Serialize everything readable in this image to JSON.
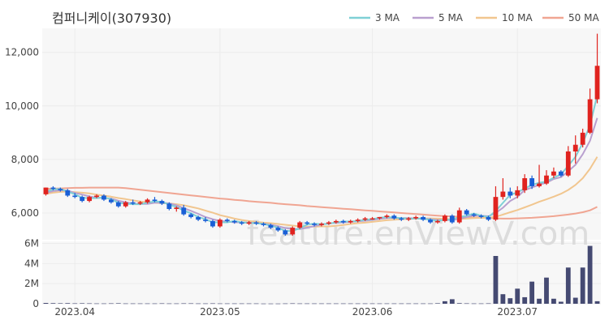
{
  "title": "컴퍼니케이(307930)",
  "watermark": "feature.enViewV.com",
  "colors": {
    "up": "#e0231f",
    "down": "#1a5fd6",
    "volume": "#454a72",
    "ma3": "#7fd0d6",
    "ma5": "#b9a0cf",
    "ma10": "#f1c68f",
    "ma50": "#f0a592",
    "grid": "#ececec",
    "panel_bg": "#f7f7f7"
  },
  "chart_data": {
    "type": "candlestick",
    "legend": [
      "3 MA",
      "5 MA",
      "10 MA",
      "50 MA"
    ],
    "legend_position": "top-right",
    "price_ticks": [
      "6,000",
      "8,000",
      "10,000",
      "12,000"
    ],
    "price_tick_values": [
      6000,
      8000,
      10000,
      12000
    ],
    "price_ylim": [
      5000,
      12900
    ],
    "volume_ticks": [
      "0",
      "2M",
      "4M",
      "6M"
    ],
    "volume_tick_values": [
      0,
      2000000,
      4000000,
      6000000
    ],
    "volume_ylim": [
      0,
      6200000
    ],
    "x_labels": [
      "2023.04",
      "2023.05",
      "2023.06",
      "2023.07"
    ],
    "x_label_index": [
      4,
      24,
      45,
      65
    ],
    "candles": [
      [
        6700,
        6950,
        6650,
        6950
      ],
      [
        6950,
        7000,
        6850,
        6900
      ],
      [
        6900,
        6950,
        6800,
        6850
      ],
      [
        6850,
        6900,
        6600,
        6650
      ],
      [
        6650,
        6750,
        6550,
        6600
      ],
      [
        6600,
        6650,
        6400,
        6450
      ],
      [
        6450,
        6650,
        6400,
        6600
      ],
      [
        6600,
        6700,
        6550,
        6650
      ],
      [
        6650,
        6700,
        6450,
        6500
      ],
      [
        6500,
        6550,
        6350,
        6400
      ],
      [
        6400,
        6450,
        6200,
        6250
      ],
      [
        6250,
        6450,
        6200,
        6400
      ],
      [
        6400,
        6500,
        6300,
        6350
      ],
      [
        6350,
        6450,
        6300,
        6400
      ],
      [
        6400,
        6550,
        6350,
        6500
      ],
      [
        6500,
        6600,
        6400,
        6450
      ],
      [
        6450,
        6500,
        6300,
        6350
      ],
      [
        6350,
        6400,
        6100,
        6150
      ],
      [
        6150,
        6250,
        6050,
        6200
      ],
      [
        6200,
        6300,
        5900,
        5950
      ],
      [
        5950,
        6000,
        5800,
        5850
      ],
      [
        5850,
        5900,
        5700,
        5750
      ],
      [
        5750,
        5850,
        5650,
        5700
      ],
      [
        5700,
        5750,
        5450,
        5500
      ],
      [
        5500,
        5800,
        5450,
        5750
      ],
      [
        5750,
        5800,
        5650,
        5700
      ],
      [
        5700,
        5750,
        5600,
        5650
      ],
      [
        5650,
        5700,
        5550,
        5600
      ],
      [
        5600,
        5700,
        5550,
        5650
      ],
      [
        5650,
        5700,
        5550,
        5600
      ],
      [
        5600,
        5650,
        5500,
        5550
      ],
      [
        5550,
        5600,
        5400,
        5450
      ],
      [
        5450,
        5500,
        5300,
        5350
      ],
      [
        5350,
        5400,
        5150,
        5200
      ],
      [
        5200,
        5500,
        5150,
        5450
      ],
      [
        5450,
        5700,
        5400,
        5650
      ],
      [
        5650,
        5700,
        5550,
        5600
      ],
      [
        5600,
        5650,
        5500,
        5550
      ],
      [
        5550,
        5650,
        5500,
        5600
      ],
      [
        5600,
        5700,
        5550,
        5650
      ],
      [
        5650,
        5750,
        5600,
        5700
      ],
      [
        5700,
        5750,
        5600,
        5650
      ],
      [
        5650,
        5750,
        5600,
        5700
      ],
      [
        5700,
        5800,
        5650,
        5750
      ],
      [
        5750,
        5850,
        5700,
        5800
      ],
      [
        5800,
        5850,
        5750,
        5800
      ],
      [
        5800,
        5850,
        5750,
        5850
      ],
      [
        5850,
        5950,
        5800,
        5900
      ],
      [
        5900,
        5950,
        5750,
        5800
      ],
      [
        5800,
        5850,
        5700,
        5750
      ],
      [
        5750,
        5850,
        5700,
        5800
      ],
      [
        5800,
        5900,
        5750,
        5850
      ],
      [
        5850,
        5900,
        5700,
        5750
      ],
      [
        5750,
        5800,
        5600,
        5650
      ],
      [
        5650,
        5750,
        5600,
        5700
      ],
      [
        5700,
        5950,
        5650,
        5900
      ],
      [
        5900,
        5950,
        5600,
        5650
      ],
      [
        5650,
        6200,
        5600,
        6100
      ],
      [
        6100,
        6150,
        5900,
        5950
      ],
      [
        5950,
        6000,
        5850,
        5900
      ],
      [
        5900,
        5950,
        5800,
        5850
      ],
      [
        5850,
        5900,
        5700,
        5750
      ],
      [
        5750,
        7000,
        5700,
        6600
      ],
      [
        6600,
        7300,
        6500,
        6800
      ],
      [
        6800,
        6950,
        6550,
        6650
      ],
      [
        6650,
        7000,
        6550,
        6850
      ],
      [
        6850,
        7450,
        6750,
        7300
      ],
      [
        7300,
        7400,
        6900,
        7000
      ],
      [
        7000,
        7800,
        6950,
        7100
      ],
      [
        7100,
        7600,
        7050,
        7400
      ],
      [
        7400,
        7700,
        7300,
        7550
      ],
      [
        7550,
        7600,
        7350,
        7400
      ],
      [
        7400,
        8500,
        7350,
        8300
      ],
      [
        8300,
        8900,
        7850,
        8550
      ],
      [
        8550,
        9150,
        8450,
        9000
      ],
      [
        9000,
        10650,
        8950,
        10250
      ],
      [
        10250,
        12700,
        10100,
        11500
      ]
    ],
    "volume": [
      80000,
      60000,
      50000,
      60000,
      40000,
      50000,
      40000,
      30000,
      30000,
      40000,
      50000,
      30000,
      30000,
      30000,
      30000,
      30000,
      40000,
      30000,
      30000,
      40000,
      40000,
      30000,
      30000,
      40000,
      30000,
      30000,
      30000,
      30000,
      30000,
      30000,
      20000,
      20000,
      20000,
      30000,
      40000,
      30000,
      30000,
      30000,
      30000,
      30000,
      30000,
      30000,
      30000,
      30000,
      30000,
      30000,
      30000,
      30000,
      30000,
      30000,
      30000,
      30000,
      30000,
      30000,
      50000,
      250000,
      450000,
      60000,
      40000,
      30000,
      30000,
      40000,
      4750000,
      950000,
      550000,
      1500000,
      650000,
      2200000,
      500000,
      2600000,
      500000,
      200000,
      3600000,
      600000,
      3600000,
      5750000,
      250000
    ],
    "ma3": [
      6800,
      6880,
      6900,
      6800,
      6700,
      6570,
      6550,
      6560,
      6580,
      6520,
      6380,
      6350,
      6330,
      6330,
      6390,
      6430,
      6420,
      6310,
      6230,
      6090,
      5990,
      5850,
      5770,
      5650,
      5650,
      5650,
      5700,
      5650,
      5630,
      5620,
      5590,
      5530,
      5450,
      5330,
      5330,
      5430,
      5570,
      5600,
      5580,
      5600,
      5650,
      5680,
      5680,
      5700,
      5750,
      5770,
      5820,
      5850,
      5830,
      5810,
      5780,
      5800,
      5780,
      5750,
      5700,
      5750,
      5750,
      5850,
      5900,
      5980,
      5900,
      5850,
      6070,
      6380,
      6680,
      6770,
      6920,
      7050,
      7130,
      7170,
      7320,
      7450,
      7760,
      8100,
      8620,
      9270,
      10400
    ],
    "ma5": [
      6750,
      6820,
      6850,
      6830,
      6750,
      6690,
      6620,
      6570,
      6560,
      6540,
      6460,
      6400,
      6350,
      6340,
      6340,
      6380,
      6390,
      6360,
      6290,
      6180,
      6080,
      5970,
      5850,
      5770,
      5700,
      5680,
      5650,
      5650,
      5640,
      5620,
      5600,
      5560,
      5510,
      5440,
      5400,
      5400,
      5450,
      5510,
      5570,
      5610,
      5630,
      5650,
      5670,
      5690,
      5710,
      5740,
      5780,
      5810,
      5820,
      5810,
      5810,
      5800,
      5790,
      5770,
      5740,
      5740,
      5740,
      5780,
      5850,
      5910,
      5900,
      5880,
      6000,
      6200,
      6450,
      6600,
      6860,
      6950,
      7060,
      7130,
      7270,
      7340,
      7560,
      7800,
      8200,
      8700,
      9550
    ],
    "ma10": [
      6720,
      6760,
      6790,
      6800,
      6780,
      6760,
      6730,
      6690,
      6650,
      6610,
      6560,
      6520,
      6470,
      6430,
      6400,
      6380,
      6370,
      6360,
      6330,
      6290,
      6230,
      6170,
      6090,
      6010,
      5920,
      5860,
      5790,
      5740,
      5700,
      5670,
      5640,
      5620,
      5590,
      5560,
      5530,
      5500,
      5490,
      5490,
      5500,
      5500,
      5520,
      5550,
      5590,
      5620,
      5640,
      5670,
      5700,
      5730,
      5750,
      5770,
      5780,
      5790,
      5800,
      5800,
      5790,
      5780,
      5770,
      5780,
      5790,
      5810,
      5820,
      5820,
      5860,
      5940,
      6030,
      6110,
      6210,
      6310,
      6420,
      6510,
      6610,
      6720,
      6860,
      7050,
      7300,
      7650,
      8100
    ],
    "ma50": [
      6900,
      6910,
      6920,
      6930,
      6940,
      6940,
      6950,
      6950,
      6950,
      6950,
      6950,
      6930,
      6900,
      6870,
      6840,
      6810,
      6780,
      6750,
      6720,
      6690,
      6660,
      6630,
      6600,
      6570,
      6540,
      6520,
      6490,
      6470,
      6440,
      6420,
      6400,
      6380,
      6350,
      6330,
      6310,
      6290,
      6260,
      6240,
      6220,
      6200,
      6180,
      6160,
      6140,
      6120,
      6100,
      6080,
      6060,
      6040,
      6020,
      6000,
      5980,
      5960,
      5940,
      5920,
      5900,
      5880,
      5870,
      5860,
      5850,
      5840,
      5830,
      5820,
      5800,
      5790,
      5790,
      5800,
      5810,
      5820,
      5840,
      5860,
      5880,
      5910,
      5940,
      5980,
      6030,
      6100,
      6230
    ]
  }
}
